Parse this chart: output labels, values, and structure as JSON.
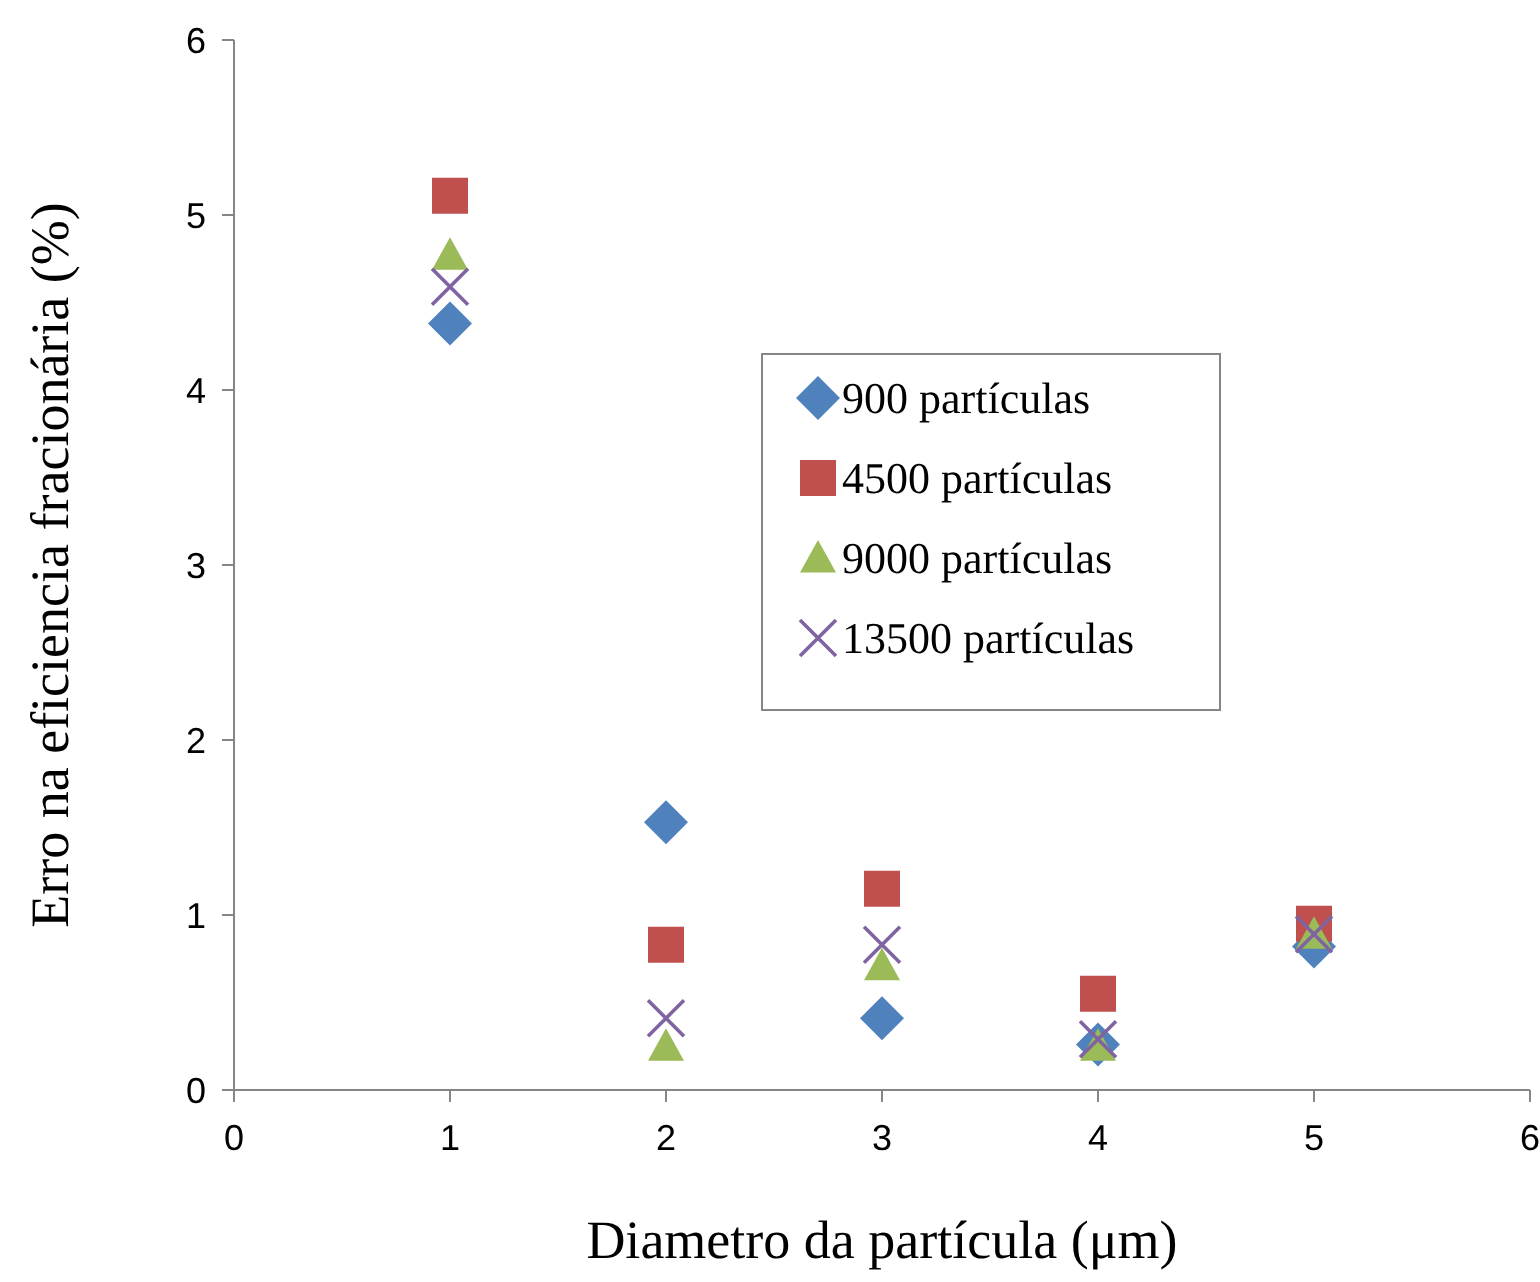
{
  "chart_data": {
    "type": "scatter",
    "xlabel": "Diametro da partícula (μm)",
    "ylabel": "Erro na eficiencia fracionária  (%)",
    "x": [
      1,
      2,
      3,
      4,
      5
    ],
    "xlim": [
      0,
      6
    ],
    "ylim": [
      0,
      6
    ],
    "xticks": [
      0,
      1,
      2,
      3,
      4,
      5,
      6
    ],
    "yticks": [
      0,
      1,
      2,
      3,
      4,
      5,
      6
    ],
    "grid": false,
    "legend": "right",
    "series": [
      {
        "name": "900 partículas",
        "color": "#4f81bd",
        "marker": "diamond",
        "values": [
          4.38,
          1.53,
          0.41,
          0.26,
          0.82
        ]
      },
      {
        "name": "4500 partículas",
        "color": "#c0504d",
        "marker": "square",
        "values": [
          5.11,
          0.83,
          1.15,
          0.55,
          0.95
        ]
      },
      {
        "name": "9000 partículas",
        "color": "#9bbb59",
        "marker": "triangle",
        "values": [
          4.77,
          0.25,
          0.71,
          0.25,
          0.89
        ]
      },
      {
        "name": "13500 partículas",
        "color": "#8064a2",
        "marker": "cross",
        "values": [
          4.59,
          0.41,
          0.83,
          0.29,
          0.89
        ]
      }
    ]
  }
}
